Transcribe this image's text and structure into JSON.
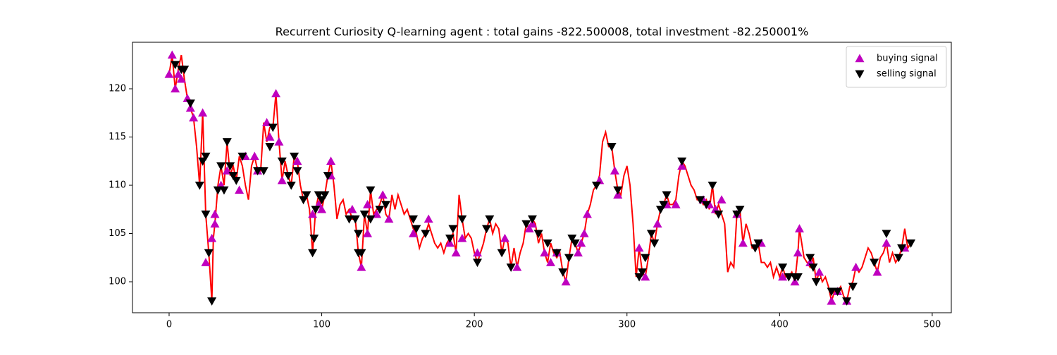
{
  "chart_data": {
    "type": "line",
    "title": "Recurrent Curiosity Q-learning agent : total gains -822.500008, total investment -82.250001%",
    "xlim": [
      -24,
      512.5
    ],
    "xticks": [
      0,
      100,
      200,
      300,
      400,
      500
    ],
    "ylim": [
      96.79,
      124.82
    ],
    "yticks": [
      100,
      105,
      110,
      115,
      120
    ],
    "legend": "upper right",
    "series": [
      {
        "color": "#ff0000",
        "marker": "none",
        "x": [
          0,
          2,
          4,
          6,
          8,
          10,
          12,
          14,
          16,
          18,
          20,
          22,
          24,
          26,
          28,
          29,
          30,
          32,
          34,
          36,
          38,
          40,
          42,
          44,
          46,
          48,
          50,
          52,
          54,
          56,
          58,
          60,
          62,
          64,
          66,
          68,
          70,
          72,
          74,
          76,
          78,
          80,
          82,
          84,
          86,
          88,
          90,
          92,
          94,
          96,
          98,
          100,
          102,
          104,
          106,
          108,
          110,
          112,
          114,
          116,
          118,
          120,
          122,
          124,
          126,
          128,
          130,
          132,
          134,
          136,
          138,
          140,
          142,
          144,
          146,
          148,
          150,
          152,
          154,
          156,
          158,
          160,
          162,
          164,
          166,
          168,
          170,
          172,
          174,
          176,
          178,
          180,
          182,
          184,
          186,
          188,
          190,
          192,
          194,
          196,
          198,
          200,
          202,
          204,
          206,
          208,
          210,
          212,
          214,
          216,
          218,
          220,
          222,
          224,
          226,
          228,
          230,
          232,
          234,
          236,
          238,
          240,
          242,
          244,
          246,
          248,
          250,
          252,
          254,
          256,
          258,
          260,
          262,
          264,
          266,
          268,
          270,
          272,
          274,
          276,
          278,
          280,
          282,
          284,
          286,
          288,
          290,
          292,
          294,
          296,
          298,
          300,
          302,
          304,
          306,
          308,
          310,
          312,
          314,
          316,
          318,
          320,
          322,
          324,
          326,
          328,
          330,
          332,
          334,
          336,
          338,
          340,
          342,
          344,
          346,
          348,
          350,
          352,
          354,
          356,
          358,
          360,
          362,
          364,
          366,
          368,
          370,
          372,
          374,
          376,
          378,
          380,
          382,
          384,
          386,
          388,
          390,
          392,
          394,
          396,
          398,
          400,
          402,
          404,
          406,
          408,
          410,
          412,
          413,
          416,
          418,
          420,
          422,
          424,
          426,
          428,
          430,
          432,
          434,
          436,
          438,
          440,
          442,
          444,
          446,
          448,
          450,
          452,
          454,
          456,
          458,
          460,
          462,
          464,
          466,
          468,
          470,
          472,
          474,
          476,
          478,
          480,
          482,
          484,
          486
        ],
        "values": [
          121.5,
          123.5,
          120,
          122,
          123.5,
          121,
          119,
          118,
          117,
          114,
          110,
          117.5,
          107,
          103,
          98,
          104.5,
          106,
          110,
          112,
          110,
          114.5,
          111,
          112,
          110.5,
          113,
          112,
          110,
          108.5,
          112,
          113,
          111.5,
          111.5,
          116.5,
          114.5,
          116,
          116,
          119.5,
          114.5,
          110.5,
          112.5,
          111,
          110,
          113,
          112.5,
          110,
          108.5,
          109,
          107.5,
          103,
          107.5,
          109,
          107.5,
          109,
          111,
          112.5,
          110,
          106.5,
          108,
          108.5,
          107,
          107.5,
          106.5,
          106.5,
          103,
          101.5,
          107,
          105,
          109.5,
          107,
          107.5,
          108,
          109,
          107,
          106.5,
          109,
          107.5,
          109,
          108,
          107,
          107.5,
          106.5,
          105.5,
          105,
          103.5,
          104.5,
          105,
          106,
          105,
          104,
          103.5,
          104,
          103,
          104,
          104.5,
          105,
          103,
          109,
          106.5,
          104.5,
          105,
          104.5,
          103,
          102,
          103,
          104,
          105.5,
          106.5,
          105,
          106,
          105.5,
          103,
          104.5,
          104,
          101.5,
          103.5,
          101.5,
          103,
          104,
          106,
          105.5,
          106.5,
          106,
          104,
          105,
          103,
          102,
          104,
          103,
          102.5,
          103,
          101,
          100,
          102.5,
          104.5,
          104,
          103,
          104,
          105,
          107,
          108,
          109.5,
          110,
          111,
          114.5,
          115.5,
          114,
          114,
          111.5,
          109.5,
          109,
          111,
          112,
          110,
          106,
          100.5,
          103.5,
          101,
          100.5,
          102.5,
          105,
          104,
          106,
          107.5,
          108,
          109,
          108,
          108,
          108.5,
          111,
          112.5,
          112,
          111,
          110,
          109.5,
          108.5,
          108.5,
          108,
          108.5,
          107.5,
          110,
          107,
          108,
          107,
          106,
          101,
          102,
          101.5,
          107,
          107.5,
          104,
          106,
          105,
          103.5,
          103.5,
          104,
          102,
          102,
          101.5,
          102,
          100.5,
          101.5,
          100.5,
          101.5,
          100.5,
          100.5,
          101,
          100,
          103,
          105.5,
          102.5,
          102,
          101.5,
          102.5,
          100,
          101,
          100,
          100.5,
          99.5,
          98,
          99,
          99,
          99.5,
          98.5,
          98,
          99.5,
          100,
          101.5,
          101,
          101.5,
          102.5,
          103.5,
          103,
          102,
          101,
          102.5,
          103,
          104,
          102,
          103,
          102,
          102.5,
          103.5,
          105.5,
          103.5,
          104
        ]
      },
      {
        "name": "buying signal",
        "color": "#bf00bf",
        "marker": "^",
        "x": [
          0,
          2,
          4,
          6,
          8,
          12,
          14,
          16,
          22,
          24,
          28,
          30,
          30,
          34,
          38,
          46,
          50,
          56,
          58,
          64,
          66,
          70,
          72,
          74,
          84,
          94,
          98,
          100,
          106,
          106,
          120,
          126,
          130,
          130,
          136,
          140,
          144,
          160,
          170,
          184,
          188,
          192,
          202,
          220,
          228,
          236,
          238,
          246,
          250,
          254,
          260,
          268,
          270,
          272,
          274,
          282,
          292,
          294,
          308,
          312,
          320,
          326,
          332,
          336,
          350,
          354,
          358,
          362,
          372,
          376,
          388,
          402,
          410,
          412,
          413,
          420,
          426,
          434,
          438,
          444,
          450,
          464,
          470,
          482
        ],
        "values": [
          121.5,
          123.5,
          120,
          121.5,
          121,
          119,
          118,
          117,
          117.5,
          102,
          104.5,
          106,
          107,
          110,
          111.5,
          109.5,
          113,
          113,
          111.5,
          116.5,
          115,
          119.5,
          114.5,
          110.5,
          112.5,
          107,
          108,
          107.5,
          112.5,
          111,
          107.5,
          101.5,
          105,
          108,
          107,
          109,
          106.5,
          105,
          106.5,
          104,
          103,
          104.5,
          103,
          104.5,
          101.5,
          105.5,
          106,
          103,
          102,
          103,
          100,
          103,
          104,
          105,
          107,
          110.5,
          111.5,
          109,
          103.5,
          100.5,
          106,
          108,
          108,
          112,
          108.5,
          108,
          107.5,
          108.5,
          107,
          104,
          104,
          100.5,
          100,
          103,
          105.5,
          102,
          101,
          98,
          99,
          98,
          101.5,
          101,
          104,
          103.5
        ]
      },
      {
        "name": "selling signal",
        "color": "#000000",
        "marker": "v",
        "x": [
          4,
          8,
          10,
          14,
          20,
          22,
          24,
          24,
          26,
          28,
          32,
          34,
          36,
          38,
          40,
          42,
          44,
          48,
          58,
          62,
          66,
          68,
          74,
          78,
          80,
          82,
          84,
          88,
          90,
          94,
          95,
          96,
          98,
          100,
          102,
          104,
          118,
          122,
          124,
          124,
          126,
          128,
          132,
          132,
          138,
          142,
          160,
          162,
          168,
          184,
          186,
          192,
          202,
          208,
          210,
          218,
          224,
          234,
          238,
          242,
          248,
          254,
          258,
          262,
          264,
          266,
          280,
          290,
          294,
          308,
          310,
          312,
          316,
          318,
          322,
          324,
          326,
          336,
          348,
          352,
          356,
          360,
          372,
          374,
          384,
          386,
          402,
          406,
          410,
          412,
          420,
          422,
          424,
          434,
          438,
          444,
          448,
          462,
          470,
          478,
          480,
          486
        ],
        "values": [
          122.5,
          122,
          122,
          118.5,
          110,
          112.5,
          113,
          107,
          103,
          98,
          109.5,
          112,
          109.5,
          114.5,
          112,
          111,
          110.5,
          113,
          111.5,
          111.5,
          114,
          116,
          112.5,
          111,
          110,
          113,
          111.5,
          108.5,
          109,
          103,
          104.5,
          107.5,
          109,
          108.5,
          109,
          111,
          106.5,
          106.5,
          105,
          103,
          103,
          107,
          109.5,
          106.5,
          107.5,
          108,
          106.5,
          105.5,
          105,
          104.5,
          105.5,
          106.5,
          102,
          105.5,
          106.5,
          103,
          101.5,
          106,
          106.5,
          105,
          104,
          103,
          101,
          102.5,
          104.5,
          104,
          110,
          114,
          109.5,
          100.5,
          101,
          102.5,
          105,
          104,
          107.5,
          108,
          109,
          112.5,
          108.5,
          108,
          110,
          107,
          107,
          107.5,
          103.5,
          104,
          101.5,
          100.5,
          100.5,
          100.5,
          102.5,
          101.5,
          100,
          99,
          99,
          98,
          99.5,
          102,
          105,
          102.5,
          103.5,
          104
        ]
      }
    ]
  }
}
